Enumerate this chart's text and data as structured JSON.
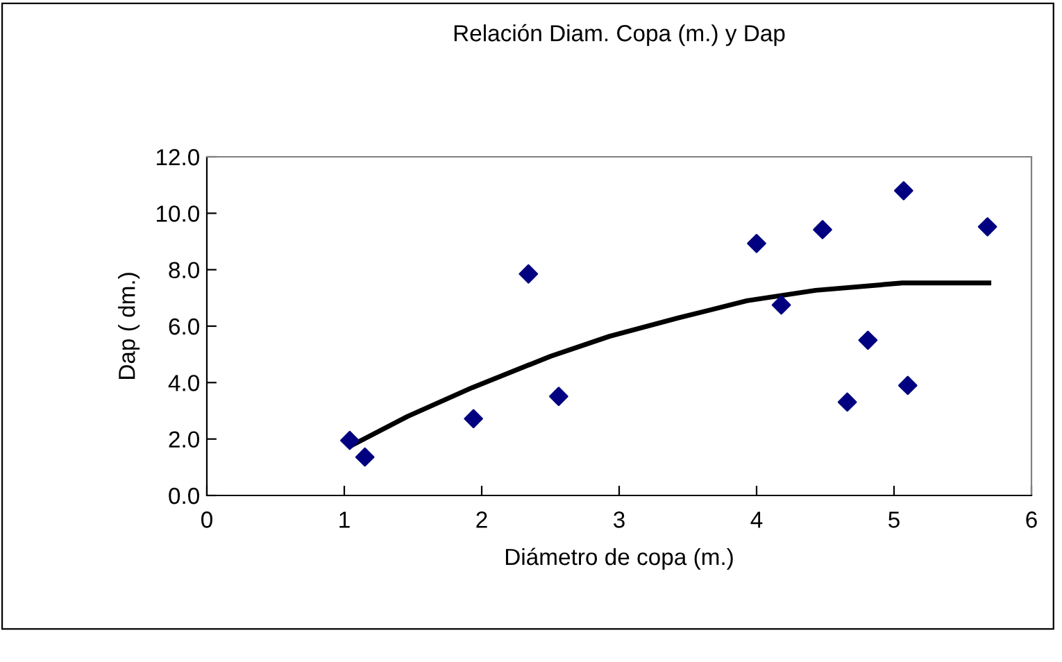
{
  "chart_data": {
    "type": "scatter",
    "title": "Relación Diam. Copa (m.) y Dap",
    "xlabel": "Diámetro de copa (m.)",
    "ylabel": "Dap ( dm.)",
    "series": [
      {
        "color": "#000080",
        "marker": "diamond",
        "x": [
          1.04,
          1.15,
          1.94,
          2.34,
          2.56,
          4.0,
          4.18,
          4.48,
          4.66,
          4.81,
          5.07,
          5.1,
          5.68
        ],
        "values": [
          1.95,
          1.36,
          2.72,
          7.85,
          3.51,
          8.93,
          6.75,
          9.42,
          3.31,
          5.5,
          10.8,
          3.9,
          9.52
        ]
      },
      {
        "type": "line",
        "color": "#000000",
        "marker": "none",
        "x": [
          1.06,
          1.46,
          1.93,
          2.5,
          2.93,
          3.43,
          3.93,
          4.43,
          5.06,
          5.69
        ],
        "values": [
          1.79,
          2.8,
          3.82,
          4.93,
          5.64,
          6.29,
          6.9,
          7.27,
          7.53,
          7.53
        ]
      }
    ],
    "xlim": [
      0,
      6
    ],
    "xticks": [
      0,
      1,
      2,
      3,
      4,
      5,
      6
    ],
    "ylim": [
      0,
      12
    ],
    "yticks": [
      {
        "value": 0,
        "label": "0.0"
      },
      {
        "value": 2,
        "label": "2.0"
      },
      {
        "value": 4,
        "label": "4.0"
      },
      {
        "value": 6,
        "label": "6.0"
      },
      {
        "value": 8,
        "label": "8.0"
      },
      {
        "value": 10,
        "label": "10.0"
      },
      {
        "value": 12,
        "label": "12.0"
      }
    ],
    "grid": false,
    "legend": false
  }
}
